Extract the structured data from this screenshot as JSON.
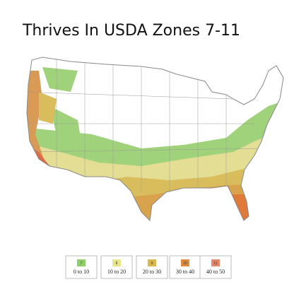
{
  "title": "Thrives In USDA Zones 7-11",
  "legend": {
    "items": [
      {
        "zone": "7",
        "range": "0 to 10",
        "color": "#8fcf6a"
      },
      {
        "zone": "8",
        "range": "10 to 20",
        "color": "#e7e68a"
      },
      {
        "zone": "9",
        "range": "20 to 30",
        "color": "#d8b848"
      },
      {
        "zone": "10",
        "range": "30 to 40",
        "color": "#e08a3a"
      },
      {
        "zone": "11",
        "range": "40 to 50",
        "color": "#e6866a"
      }
    ]
  }
}
